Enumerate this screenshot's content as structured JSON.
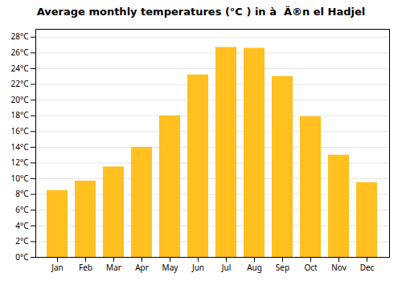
{
  "chart_data": {
    "type": "bar",
    "title": "Average monthly temperatures (°C ) in à  Ä®n el Hadjel",
    "categories": [
      "Jan",
      "Feb",
      "Mar",
      "Apr",
      "May",
      "Jun",
      "Jul",
      "Aug",
      "Sep",
      "Oct",
      "Nov",
      "Dec"
    ],
    "values": [
      8.5,
      9.7,
      11.5,
      14.0,
      18.0,
      23.2,
      26.7,
      26.6,
      23.0,
      17.9,
      13.0,
      9.5
    ],
    "color": "#FFC020",
    "ylim": [
      0,
      29
    ],
    "yticks": [
      {
        "value": 0,
        "label": "0°C"
      },
      {
        "value": 2,
        "label": "2°C"
      },
      {
        "value": 4,
        "label": "4°C"
      },
      {
        "value": 6,
        "label": "6°C"
      },
      {
        "value": 8,
        "label": "8°C"
      },
      {
        "value": 10,
        "label": "10°C"
      },
      {
        "value": 12,
        "label": "12°C"
      },
      {
        "value": 14,
        "label": "14°C"
      },
      {
        "value": 16,
        "label": "16°C"
      },
      {
        "value": 18,
        "label": "18°C"
      },
      {
        "value": 20,
        "label": "20°C"
      },
      {
        "value": 22,
        "label": "22°C"
      },
      {
        "value": 24,
        "label": "24°C"
      },
      {
        "value": 26,
        "label": "26°C"
      },
      {
        "value": 28,
        "label": "28°C"
      }
    ],
    "grid": true
  }
}
